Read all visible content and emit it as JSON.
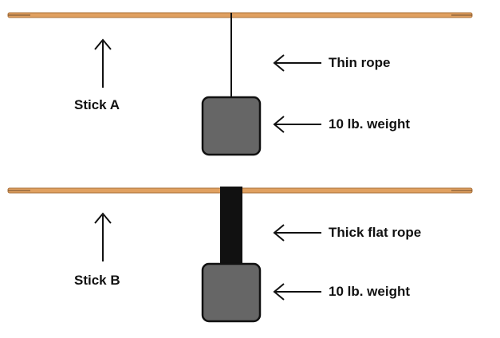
{
  "colors": {
    "stick": "#e0a060",
    "stick_edge": "#a8703a",
    "rope": "#111111",
    "weight_fill": "#666666",
    "weight_stroke": "#111111",
    "arrow": "#111111"
  },
  "panels": [
    {
      "stick_label": "Stick A",
      "rope_label": "Thin rope",
      "weight_label": "10 lb. weight",
      "rope_type": "thin"
    },
    {
      "stick_label": "Stick B",
      "rope_label": "Thick flat rope",
      "weight_label": "10 lb. weight",
      "rope_type": "thick-flat"
    }
  ]
}
